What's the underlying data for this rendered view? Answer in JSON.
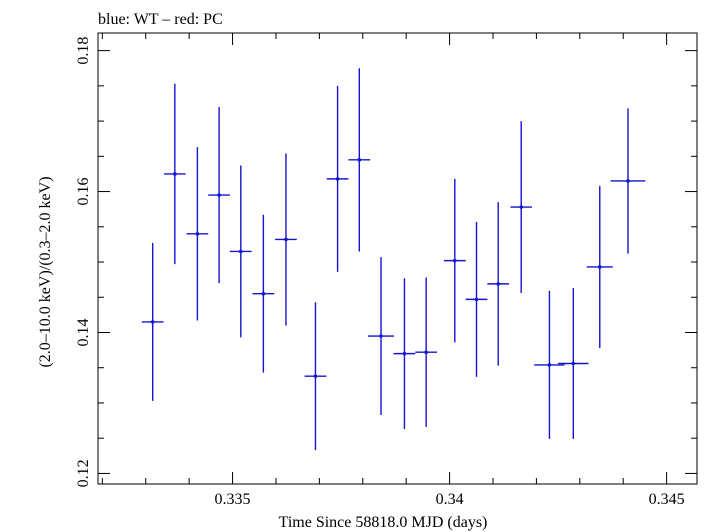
{
  "chart_data": {
    "type": "scatter",
    "title": "blue: WT – red: PC",
    "xlabel": "Time Since 58818.0 MJD (days)",
    "ylabel": "(2.0–10.0 keV)/(0.3–2.0 keV)",
    "xlim": [
      0.3319,
      0.3457
    ],
    "ylim": [
      0.1185,
      0.1825
    ],
    "x_ticks": [
      0.335,
      0.34,
      0.345
    ],
    "x_tick_labels": [
      "0.335",
      "0.34",
      "0.345"
    ],
    "y_ticks": [
      0.12,
      0.14,
      0.16,
      0.18
    ],
    "y_tick_labels": [
      "0.12",
      "0.14",
      "0.16",
      "0.18"
    ],
    "colors": {
      "series": "#1414d2",
      "axes": "#000000"
    },
    "series": [
      {
        "x": [
          0.33316,
          0.33367,
          0.33419,
          0.33469,
          0.33519,
          0.33571,
          0.33623,
          0.33691,
          0.33742,
          0.33792,
          0.33842,
          0.33896,
          0.33946,
          0.34012,
          0.34062,
          0.34112,
          0.34165,
          0.3423,
          0.34285,
          0.34346,
          0.34411
        ],
        "y": [
          0.1415,
          0.1625,
          0.154,
          0.1595,
          0.1515,
          0.1455,
          0.1532,
          0.1338,
          0.1618,
          0.1645,
          0.1395,
          0.137,
          0.1372,
          0.1502,
          0.1447,
          0.1469,
          0.1578,
          0.1354,
          0.1356,
          0.1493,
          0.1615
        ],
        "x_err": [
          0.00025,
          0.00025,
          0.00025,
          0.00025,
          0.00025,
          0.00025,
          0.00025,
          0.00025,
          0.00025,
          0.00025,
          0.0003,
          0.00025,
          0.00025,
          0.00025,
          0.00025,
          0.00025,
          0.00025,
          0.00035,
          0.00035,
          0.0003,
          0.0004
        ],
        "y_err": [
          0.0112,
          0.0128,
          0.0123,
          0.0125,
          0.0122,
          0.0112,
          0.0122,
          0.0105,
          0.0132,
          0.013,
          0.0112,
          0.0107,
          0.0106,
          0.0116,
          0.011,
          0.0116,
          0.0122,
          0.0105,
          0.0107,
          0.0115,
          0.0103
        ]
      }
    ]
  }
}
